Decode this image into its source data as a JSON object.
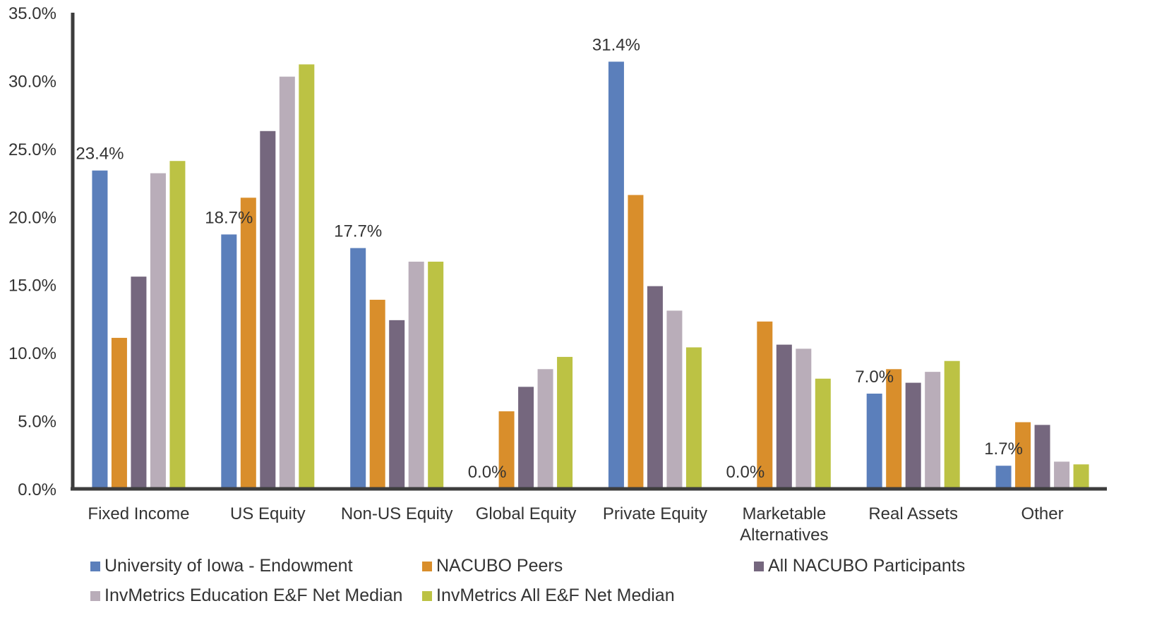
{
  "chart_data": {
    "type": "bar",
    "categories": [
      [
        "Fixed Income"
      ],
      [
        "US Equity"
      ],
      [
        "Non-US Equity"
      ],
      [
        "Global Equity"
      ],
      [
        "Private Equity"
      ],
      [
        "Marketable",
        "Alternatives"
      ],
      [
        "Real Assets"
      ],
      [
        "Other"
      ]
    ],
    "series": [
      {
        "name": "University of Iowa - Endowment",
        "color": "#5b7fbb",
        "values": [
          23.4,
          18.7,
          17.7,
          0.0,
          31.4,
          0.0,
          7.0,
          1.7
        ],
        "labels": [
          "23.4%",
          "18.7%",
          "17.7%",
          "0.0%",
          "31.4%",
          "0.0%",
          "7.0%",
          "1.7%"
        ]
      },
      {
        "name": "NACUBO Peers",
        "color": "#d98e2b",
        "values": [
          11.1,
          21.4,
          13.9,
          5.7,
          21.6,
          12.3,
          8.8,
          4.9
        ]
      },
      {
        "name": "All NACUBO Participants",
        "color": "#75677e",
        "values": [
          15.6,
          26.3,
          12.4,
          7.5,
          14.9,
          10.6,
          7.8,
          4.7
        ]
      },
      {
        "name": "InvMetrics Education E&F Net Median",
        "color": "#b9adb9",
        "values": [
          23.2,
          30.3,
          16.7,
          8.8,
          13.1,
          10.3,
          8.6,
          2.0
        ]
      },
      {
        "name": "InvMetrics All E&F Net Median",
        "color": "#bcc244",
        "values": [
          24.1,
          31.2,
          16.7,
          9.7,
          10.4,
          8.1,
          9.4,
          1.8
        ]
      }
    ],
    "yticks": [
      "0.0%",
      "5.0%",
      "10.0%",
      "15.0%",
      "20.0%",
      "25.0%",
      "30.0%",
      "35.0%"
    ],
    "ylim": [
      0,
      35
    ],
    "legend_position": "bottom"
  }
}
